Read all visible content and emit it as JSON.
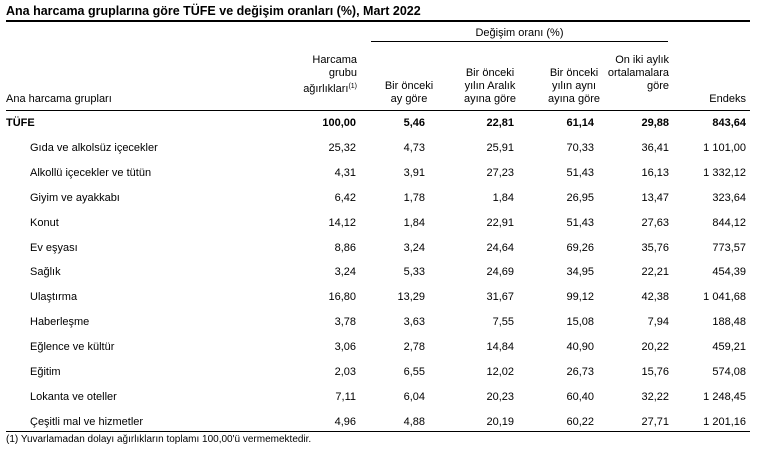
{
  "title": "Ana harcama gruplarına göre TÜFE ve değişim oranları (%), Mart 2022",
  "header": {
    "group_label": "Değişim oranı (%)",
    "col_name": "Ana harcama grupları",
    "col_weight": "Harcama\ngrubu\nağırlıkları",
    "col_weight_note": "(1)",
    "col_monthly": "Bir önceki\nay göre",
    "col_december": "Bir önceki\nyılın Aralık\nayına göre",
    "col_yoy": "Bir önceki\nyılın aynı\nayına göre",
    "col_12m": "On iki aylık\nortalamalara\ngöre",
    "col_index": "Endeks"
  },
  "rows": [
    {
      "name": "TÜFE",
      "weight": "100,00",
      "monthly": "5,46",
      "december": "22,81",
      "yoy": "61,14",
      "avg12": "29,88",
      "index": "843,64"
    },
    {
      "name": "Gıda ve alkolsüz içecekler",
      "weight": "25,32",
      "monthly": "4,73",
      "december": "25,91",
      "yoy": "70,33",
      "avg12": "36,41",
      "index": "1 101,00"
    },
    {
      "name": "Alkollü içecekler ve tütün",
      "weight": "4,31",
      "monthly": "3,91",
      "december": "27,23",
      "yoy": "51,43",
      "avg12": "16,13",
      "index": "1 332,12"
    },
    {
      "name": "Giyim ve ayakkabı",
      "weight": "6,42",
      "monthly": "1,78",
      "december": "1,84",
      "yoy": "26,95",
      "avg12": "13,47",
      "index": "323,64"
    },
    {
      "name": "Konut",
      "weight": "14,12",
      "monthly": "1,84",
      "december": "22,91",
      "yoy": "51,43",
      "avg12": "27,63",
      "index": "844,12"
    },
    {
      "name": "Ev eşyası",
      "weight": "8,86",
      "monthly": "3,24",
      "december": "24,64",
      "yoy": "69,26",
      "avg12": "35,76",
      "index": "773,57"
    },
    {
      "name": "Sağlık",
      "weight": "3,24",
      "monthly": "5,33",
      "december": "24,69",
      "yoy": "34,95",
      "avg12": "22,21",
      "index": "454,39"
    },
    {
      "name": "Ulaştırma",
      "weight": "16,80",
      "monthly": "13,29",
      "december": "31,67",
      "yoy": "99,12",
      "avg12": "42,38",
      "index": "1 041,68"
    },
    {
      "name": "Haberleşme",
      "weight": "3,78",
      "monthly": "3,63",
      "december": "7,55",
      "yoy": "15,08",
      "avg12": "7,94",
      "index": "188,48"
    },
    {
      "name": "Eğlence ve kültür",
      "weight": "3,06",
      "monthly": "2,78",
      "december": "14,84",
      "yoy": "40,90",
      "avg12": "20,22",
      "index": "459,21"
    },
    {
      "name": "Eğitim",
      "weight": "2,03",
      "monthly": "6,55",
      "december": "12,02",
      "yoy": "26,73",
      "avg12": "15,76",
      "index": "574,08"
    },
    {
      "name": "Lokanta ve oteller",
      "weight": "7,11",
      "monthly": "6,04",
      "december": "20,23",
      "yoy": "60,40",
      "avg12": "32,22",
      "index": "1 248,45"
    },
    {
      "name": "Çeşitli mal ve hizmetler",
      "weight": "4,96",
      "monthly": "4,88",
      "december": "20,19",
      "yoy": "60,22",
      "avg12": "27,71",
      "index": "1 201,16"
    }
  ],
  "footnote": "(1) Yuvarlamadan dolayı ağırlıkların toplamı 100,00'ü vermemektedir."
}
